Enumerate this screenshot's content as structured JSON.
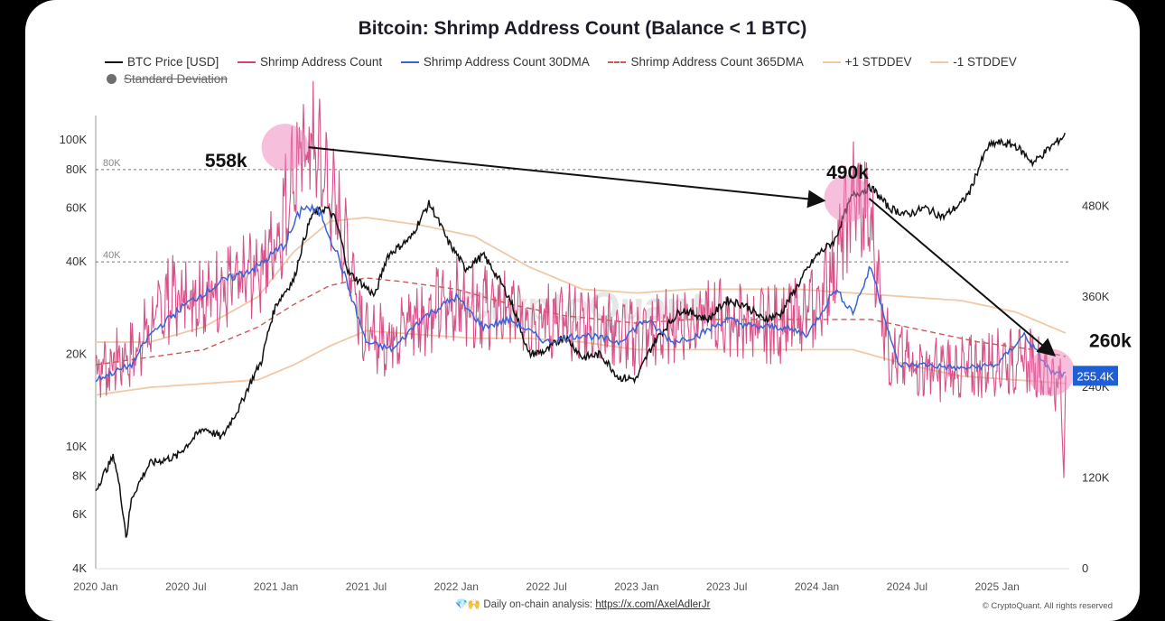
{
  "title": "Bitcoin: Shrimp Address Count (Balance < 1 BTC)",
  "legend": {
    "btc_price": "BTC Price [USD]",
    "shrimp": "Shrimp Address Count",
    "dma30": "Shrimp Address Count 30DMA",
    "dma365": "Shrimp Address Count 365DMA",
    "plus_std": "+1 STDDEV",
    "minus_std": "-1 STDDEV",
    "std_dev": "Standard Deviation"
  },
  "colors": {
    "btc": "#111111",
    "shrimp": "#d23f7c",
    "dma30": "#3a63d8",
    "dma365": "#c8595a",
    "band": "#f0c9a6",
    "highlight": "#ee7fb8",
    "badge": "#1f5fd6"
  },
  "footer": {
    "prefix": "Daily on-chain analysis:",
    "link": "https://x.com/AxelAdlerJr",
    "icons": "💎🙌",
    "credit": "© CryptoQuant. All rights reserved"
  },
  "watermark": "CryptoQuant",
  "chart_data": {
    "type": "line",
    "title": "Bitcoin: Shrimp Address Count (Balance < 1 BTC)",
    "x_ticks": [
      "2020 Jan",
      "2020 Jul",
      "2021 Jan",
      "2021 Jul",
      "2022 Jan",
      "2022 Jul",
      "2023 Jan",
      "2023 Jul",
      "2024 Jan",
      "2024 Jul",
      "2025 Jan"
    ],
    "x_tick_values": [
      2020.0,
      2020.5,
      2021.0,
      2021.5,
      2022.0,
      2022.5,
      2023.0,
      2023.5,
      2024.0,
      2024.5,
      2025.0
    ],
    "xlim": [
      2020.0,
      2025.4
    ],
    "left_axis": {
      "label": "BTC Price [USD]",
      "scale": "log",
      "range": [
        4000,
        120000
      ],
      "ticks": [
        {
          "v": 4000,
          "label": "4K"
        },
        {
          "v": 6000,
          "label": "6K"
        },
        {
          "v": 8000,
          "label": "8K"
        },
        {
          "v": 10000,
          "label": "10K"
        },
        {
          "v": 20000,
          "label": "20K"
        },
        {
          "v": 40000,
          "label": "40K"
        },
        {
          "v": 60000,
          "label": "60K"
        },
        {
          "v": 80000,
          "label": "80K"
        },
        {
          "v": 100000,
          "label": "100K"
        }
      ]
    },
    "right_axis": {
      "label": "Shrimp Address Count",
      "scale": "linear",
      "range": [
        0,
        600000
      ],
      "ticks": [
        {
          "v": 0,
          "label": "0"
        },
        {
          "v": 120000,
          "label": "120K"
        },
        {
          "v": 240000,
          "label": "240K"
        },
        {
          "v": 360000,
          "label": "360K"
        },
        {
          "v": 480000,
          "label": "480K"
        }
      ]
    },
    "threshold_lines": [
      {
        "label": "80K",
        "value": 80000
      },
      {
        "label": "40K",
        "value": 40000
      }
    ],
    "series": [
      {
        "name": "BTC Price [USD]",
        "axis": "left",
        "x": [
          2020.0,
          2020.1,
          2020.17,
          2020.2,
          2020.3,
          2020.45,
          2020.6,
          2020.7,
          2020.8,
          2020.92,
          2021.0,
          2021.1,
          2021.2,
          2021.28,
          2021.33,
          2021.4,
          2021.5,
          2021.55,
          2021.62,
          2021.75,
          2021.85,
          2021.95,
          2022.05,
          2022.15,
          2022.3,
          2022.4,
          2022.5,
          2022.6,
          2022.7,
          2022.8,
          2022.9,
          2023.0,
          2023.1,
          2023.25,
          2023.4,
          2023.5,
          2023.6,
          2023.7,
          2023.8,
          2023.9,
          2024.0,
          2024.1,
          2024.2,
          2024.3,
          2024.4,
          2024.5,
          2024.6,
          2024.7,
          2024.8,
          2024.85,
          2024.95,
          2025.0,
          2025.1,
          2025.2,
          2025.3,
          2025.38
        ],
        "y": [
          7200,
          9300,
          5000,
          6800,
          8800,
          9300,
          11500,
          10700,
          13500,
          19000,
          29000,
          35000,
          57000,
          60000,
          55000,
          37000,
          33000,
          31000,
          42000,
          48000,
          62000,
          47000,
          38000,
          42000,
          30000,
          20000,
          20500,
          23000,
          19500,
          20000,
          16800,
          16600,
          22000,
          28000,
          26000,
          30000,
          29000,
          26000,
          27000,
          34000,
          42000,
          47000,
          66000,
          70000,
          60000,
          57000,
          60000,
          56000,
          62000,
          68000,
          95000,
          98000,
          96000,
          84000,
          95000,
          104000
        ]
      },
      {
        "name": "Shrimp Address Count",
        "axis": "right",
        "x": [
          2020.0,
          2020.2,
          2020.4,
          2020.6,
          2020.8,
          2021.0,
          2021.1,
          2021.2,
          2021.3,
          2021.4,
          2021.5,
          2021.6,
          2021.8,
          2022.0,
          2022.2,
          2022.4,
          2022.6,
          2022.8,
          2023.0,
          2023.2,
          2023.4,
          2023.6,
          2023.8,
          2024.0,
          2024.1,
          2024.2,
          2024.3,
          2024.4,
          2024.6,
          2024.8,
          2025.0,
          2025.2,
          2025.35,
          2025.37,
          2025.4
        ],
        "y": [
          260000,
          280000,
          350000,
          360000,
          370000,
          420000,
          520000,
          558000,
          490000,
          420000,
          300000,
          300000,
          330000,
          350000,
          340000,
          330000,
          320000,
          320000,
          300000,
          320000,
          330000,
          320000,
          320000,
          340000,
          400000,
          490000,
          450000,
          280000,
          260000,
          260000,
          270000,
          270000,
          240000,
          120000,
          255400
        ]
      },
      {
        "name": "Shrimp Address Count 30DMA",
        "axis": "right",
        "x": [
          2020.0,
          2020.2,
          2020.3,
          2020.5,
          2020.7,
          2020.9,
          2021.05,
          2021.15,
          2021.25,
          2021.35,
          2021.5,
          2021.65,
          2021.8,
          2022.0,
          2022.15,
          2022.3,
          2022.5,
          2022.7,
          2022.9,
          2023.05,
          2023.2,
          2023.35,
          2023.5,
          2023.65,
          2023.8,
          2023.95,
          2024.1,
          2024.2,
          2024.3,
          2024.45,
          2024.6,
          2024.8,
          2025.0,
          2025.15,
          2025.3,
          2025.4
        ],
        "y": [
          250000,
          270000,
          310000,
          350000,
          380000,
          400000,
          430000,
          480000,
          470000,
          410000,
          300000,
          290000,
          330000,
          360000,
          320000,
          330000,
          300000,
          310000,
          300000,
          330000,
          300000,
          310000,
          330000,
          320000,
          320000,
          310000,
          370000,
          340000,
          400000,
          270000,
          270000,
          265000,
          270000,
          310000,
          260000,
          255400
        ]
      },
      {
        "name": "Shrimp Address Count 365DMA",
        "axis": "right",
        "x": [
          2020.0,
          2020.3,
          2020.6,
          2020.9,
          2021.1,
          2021.3,
          2021.5,
          2021.7,
          2022.0,
          2022.3,
          2022.6,
          2023.0,
          2023.3,
          2023.6,
          2024.0,
          2024.3,
          2024.6,
          2024.9,
          2025.2,
          2025.4
        ],
        "y": [
          270000,
          280000,
          290000,
          320000,
          350000,
          375000,
          385000,
          380000,
          370000,
          350000,
          335000,
          325000,
          330000,
          330000,
          330000,
          330000,
          315000,
          300000,
          290000,
          280000
        ]
      },
      {
        "name": "+1 STDDEV",
        "axis": "right",
        "x": [
          2020.0,
          2020.3,
          2020.6,
          2020.9,
          2021.1,
          2021.3,
          2021.5,
          2021.8,
          2022.1,
          2022.4,
          2022.7,
          2023.0,
          2023.3,
          2023.6,
          2023.9,
          2024.2,
          2024.5,
          2024.8,
          2025.1,
          2025.4
        ],
        "y": [
          300000,
          300000,
          320000,
          360000,
          420000,
          460000,
          465000,
          455000,
          440000,
          400000,
          370000,
          365000,
          370000,
          370000,
          370000,
          365000,
          360000,
          355000,
          340000,
          310000
        ]
      },
      {
        "name": "-1 STDDEV",
        "axis": "right",
        "x": [
          2020.0,
          2020.3,
          2020.6,
          2020.9,
          2021.1,
          2021.3,
          2021.5,
          2021.8,
          2022.1,
          2022.4,
          2022.7,
          2023.0,
          2023.3,
          2023.6,
          2023.9,
          2024.2,
          2024.5,
          2024.8,
          2025.1,
          2025.4
        ],
        "y": [
          230000,
          240000,
          245000,
          250000,
          270000,
          295000,
          315000,
          310000,
          305000,
          305000,
          300000,
          290000,
          290000,
          290000,
          290000,
          290000,
          270000,
          255000,
          250000,
          245000
        ]
      }
    ],
    "annotations": [
      {
        "label": "558k",
        "x": 2021.05,
        "y": 558000
      },
      {
        "label": "490k",
        "x": 2024.17,
        "y": 490000
      },
      {
        "label": "260k",
        "x": 2025.3,
        "y": 260000
      }
    ],
    "last_value_badge": {
      "label": "255.4K",
      "value": 255400
    }
  }
}
